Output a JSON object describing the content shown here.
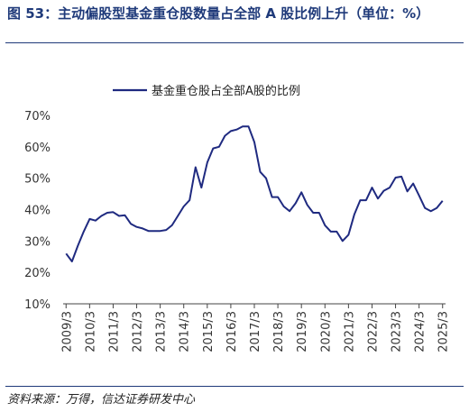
{
  "figure": {
    "title": "图  53：主动偏股型基金重仓股数量占全部 A 股比例上升（单位：%）",
    "source": "资料来源：万得，信达证券研发中心"
  },
  "colors": {
    "line": "#1f2a80",
    "title": "#1f3a7a",
    "axis": "#444444"
  },
  "chart_data": {
    "type": "line",
    "title": "",
    "xlabel": "",
    "ylabel": "",
    "ylim": [
      10,
      70
    ],
    "yticks": [
      "10%",
      "20%",
      "30%",
      "40%",
      "50%",
      "60%",
      "70%"
    ],
    "ytick_values": [
      10,
      20,
      30,
      40,
      50,
      60,
      70
    ],
    "xticks": [
      "2009/3",
      "2010/3",
      "2011/3",
      "2012/3",
      "2013/3",
      "2014/3",
      "2015/3",
      "2016/3",
      "2017/3",
      "2018/3",
      "2019/3",
      "2020/3",
      "2021/3",
      "2022/3",
      "2023/3",
      "2024/3",
      "2025/3"
    ],
    "grid": false,
    "legend_position": "top",
    "series": [
      {
        "name": "基金重仓股占全部A股的比例",
        "x": [
          "2009/3",
          "2009/6",
          "2009/9",
          "2009/12",
          "2010/3",
          "2010/6",
          "2010/9",
          "2010/12",
          "2011/3",
          "2011/6",
          "2011/9",
          "2011/12",
          "2012/3",
          "2012/6",
          "2012/9",
          "2012/12",
          "2013/3",
          "2013/6",
          "2013/9",
          "2013/12",
          "2014/3",
          "2014/6",
          "2014/9",
          "2014/12",
          "2015/3",
          "2015/6",
          "2015/9",
          "2015/12",
          "2016/3",
          "2016/6",
          "2016/9",
          "2016/12",
          "2017/3",
          "2017/6",
          "2017/9",
          "2017/12",
          "2018/3",
          "2018/6",
          "2018/9",
          "2018/12",
          "2019/3",
          "2019/6",
          "2019/9",
          "2019/12",
          "2020/3",
          "2020/6",
          "2020/9",
          "2020/12",
          "2021/3",
          "2021/6",
          "2021/9",
          "2021/12",
          "2022/3",
          "2022/6",
          "2022/9",
          "2022/12",
          "2023/3",
          "2023/6",
          "2023/9",
          "2023/12",
          "2024/3",
          "2024/6",
          "2024/9",
          "2024/12",
          "2025/3"
        ],
        "values": [
          26,
          23.5,
          28.5,
          33,
          37,
          36.5,
          38,
          39,
          39.2,
          38,
          38.2,
          35.5,
          34.5,
          34,
          33.2,
          33.2,
          33.2,
          33.5,
          35,
          38,
          41,
          43,
          53.5,
          47,
          55,
          59.5,
          60,
          63.5,
          65,
          65.5,
          66.5,
          66.5,
          61.5,
          52,
          50,
          44,
          44,
          41,
          39.5,
          42,
          45.5,
          41.5,
          39,
          39,
          35,
          33,
          33,
          30,
          32,
          38.5,
          43,
          43,
          47,
          43.5,
          46,
          47,
          50.2,
          50.5,
          45.8,
          48.3,
          44.5,
          40.5,
          39.5,
          40.5,
          42.8
        ]
      }
    ]
  }
}
